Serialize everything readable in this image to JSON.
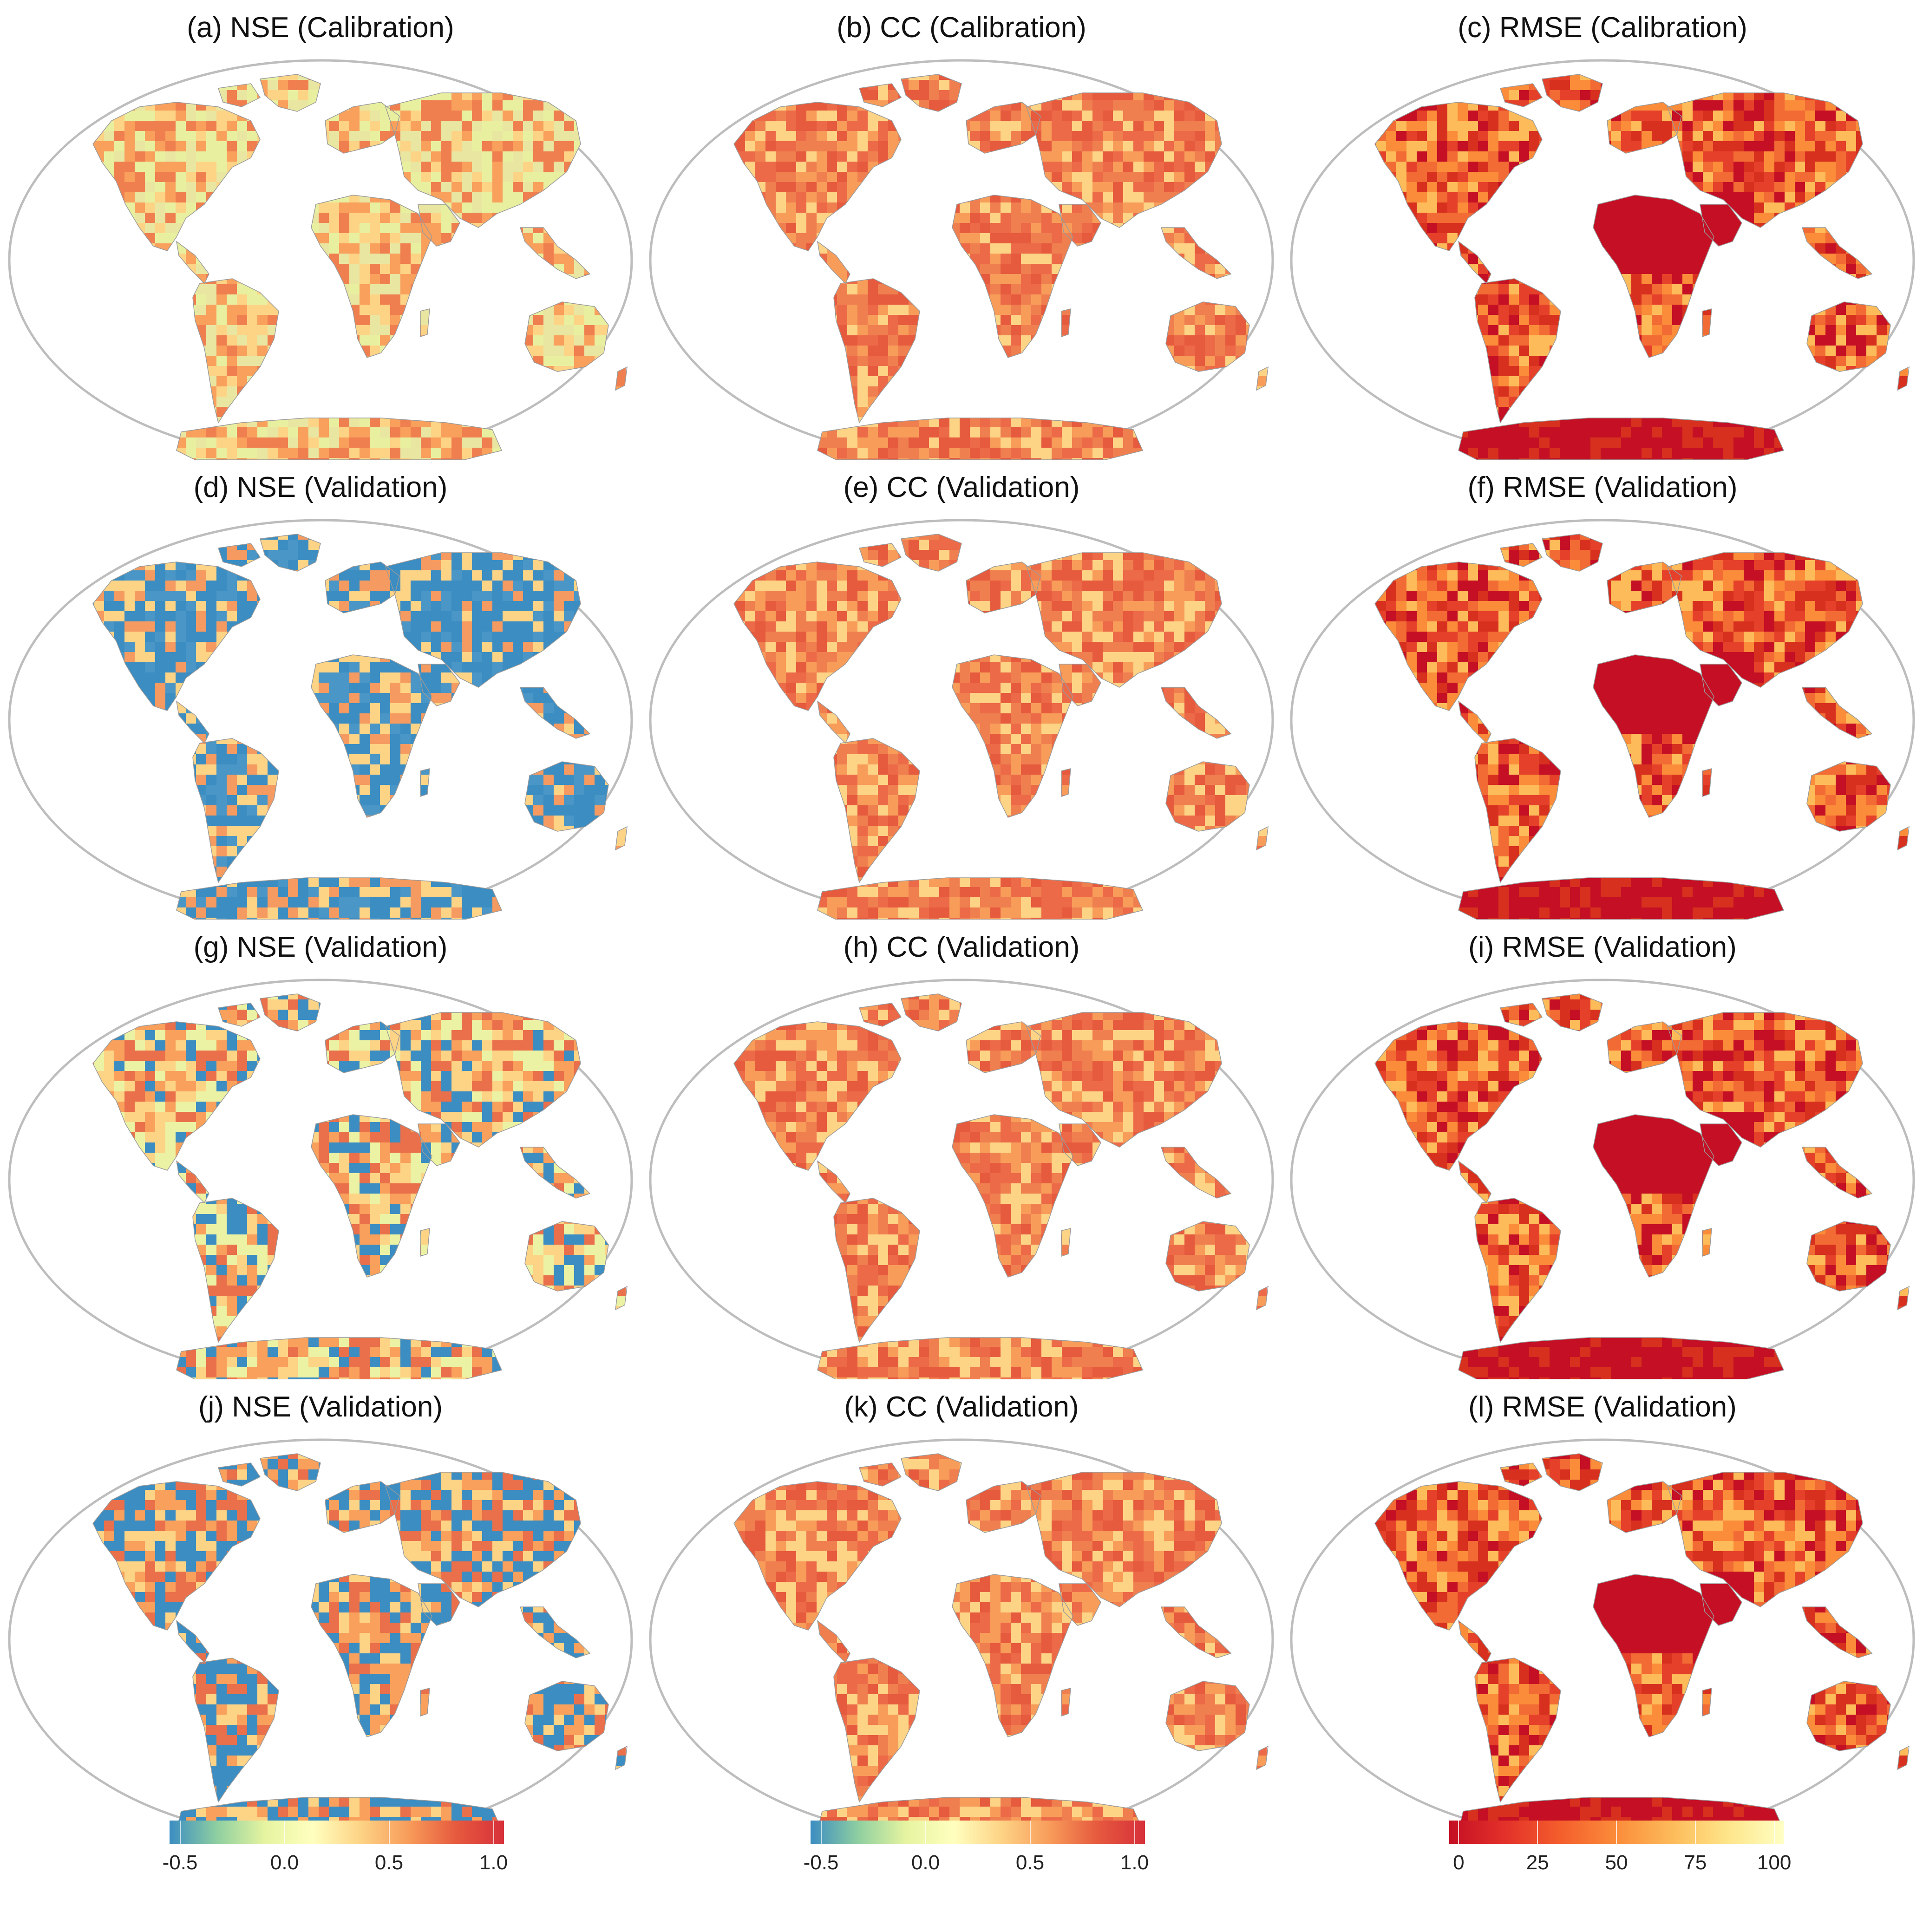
{
  "panels": [
    {
      "title": "(a) NSE (Calibration)",
      "metric": "NSE",
      "tone": "warm-mixed"
    },
    {
      "title": "(b) CC (Calibration)",
      "metric": "CC",
      "tone": "warm"
    },
    {
      "title": "(c) RMSE (Calibration)",
      "metric": "RMSE",
      "tone": "hot"
    },
    {
      "title": "(d) NSE (Validation)",
      "metric": "NSE",
      "tone": "cool"
    },
    {
      "title": "(e) CC (Validation)",
      "metric": "CC",
      "tone": "warm"
    },
    {
      "title": "(f) RMSE (Validation)",
      "metric": "RMSE",
      "tone": "hot"
    },
    {
      "title": "(g) NSE (Validation)",
      "metric": "NSE",
      "tone": "mixed"
    },
    {
      "title": "(h) CC (Validation)",
      "metric": "CC",
      "tone": "warm"
    },
    {
      "title": "(i) RMSE (Validation)",
      "metric": "RMSE",
      "tone": "hot"
    },
    {
      "title": "(j) NSE (Validation)",
      "metric": "NSE",
      "tone": "mixed-cool"
    },
    {
      "title": "(k) CC (Validation)",
      "metric": "CC",
      "tone": "warm"
    },
    {
      "title": "(l) RMSE (Validation)",
      "metric": "RMSE",
      "tone": "hot"
    }
  ],
  "colorbars": [
    {
      "metric": "NSE",
      "ticks": [
        "-0.5",
        "0.0",
        "0.5",
        "1.0"
      ],
      "tick_values": [
        -0.5,
        0.0,
        0.5,
        1.0
      ],
      "range": [
        -0.55,
        1.05
      ],
      "colors": [
        "#3b8dc2",
        "#8fcfa0",
        "#e6f4a0",
        "#ffffbf",
        "#fdd385",
        "#f89c5a",
        "#e65a3e",
        "#d7303b"
      ]
    },
    {
      "metric": "CC",
      "ticks": [
        "-0.5",
        "0.0",
        "0.5",
        "1.0"
      ],
      "tick_values": [
        -0.5,
        0.0,
        0.5,
        1.0
      ],
      "range": [
        -0.55,
        1.05
      ],
      "colors": [
        "#3b8dc2",
        "#8fcfa0",
        "#e6f4a0",
        "#ffffbf",
        "#fdd385",
        "#f89c5a",
        "#e65a3e",
        "#d7303b"
      ]
    },
    {
      "metric": "RMSE",
      "ticks": [
        "0",
        "25",
        "50",
        "75",
        "100"
      ],
      "tick_values": [
        0,
        25,
        50,
        75,
        100
      ],
      "range": [
        -3,
        103
      ],
      "colors": [
        "#c40f24",
        "#e3312a",
        "#f45e2c",
        "#fb8c3a",
        "#fdbb5a",
        "#fee58a",
        "#ffffc4"
      ]
    }
  ],
  "map_colors": {
    "outline": "#bdbdbd",
    "warm-mixed": [
      "#e8f0a0",
      "#fdd385",
      "#f8a05c",
      "#f07f50",
      "#e9e6a2"
    ],
    "warm": [
      "#f07f50",
      "#e65a3e",
      "#f89c5a",
      "#fdd385",
      "#ec6a48"
    ],
    "hot": [
      "#d7301f",
      "#e5412a",
      "#f26a34",
      "#c40f24",
      "#fb8c3a",
      "#fdbb5a"
    ],
    "cool": [
      "#3b8dc2",
      "#4a96c6",
      "#f59a60",
      "#fdd385",
      "#3b8dc2"
    ],
    "mixed": [
      "#3b8dc2",
      "#f8a05c",
      "#fdd385",
      "#ecf2a4",
      "#e9704a"
    ],
    "mixed-cool": [
      "#3b8dc2",
      "#f8a05c",
      "#fdd385",
      "#3b8dc2",
      "#e9704a"
    ]
  }
}
